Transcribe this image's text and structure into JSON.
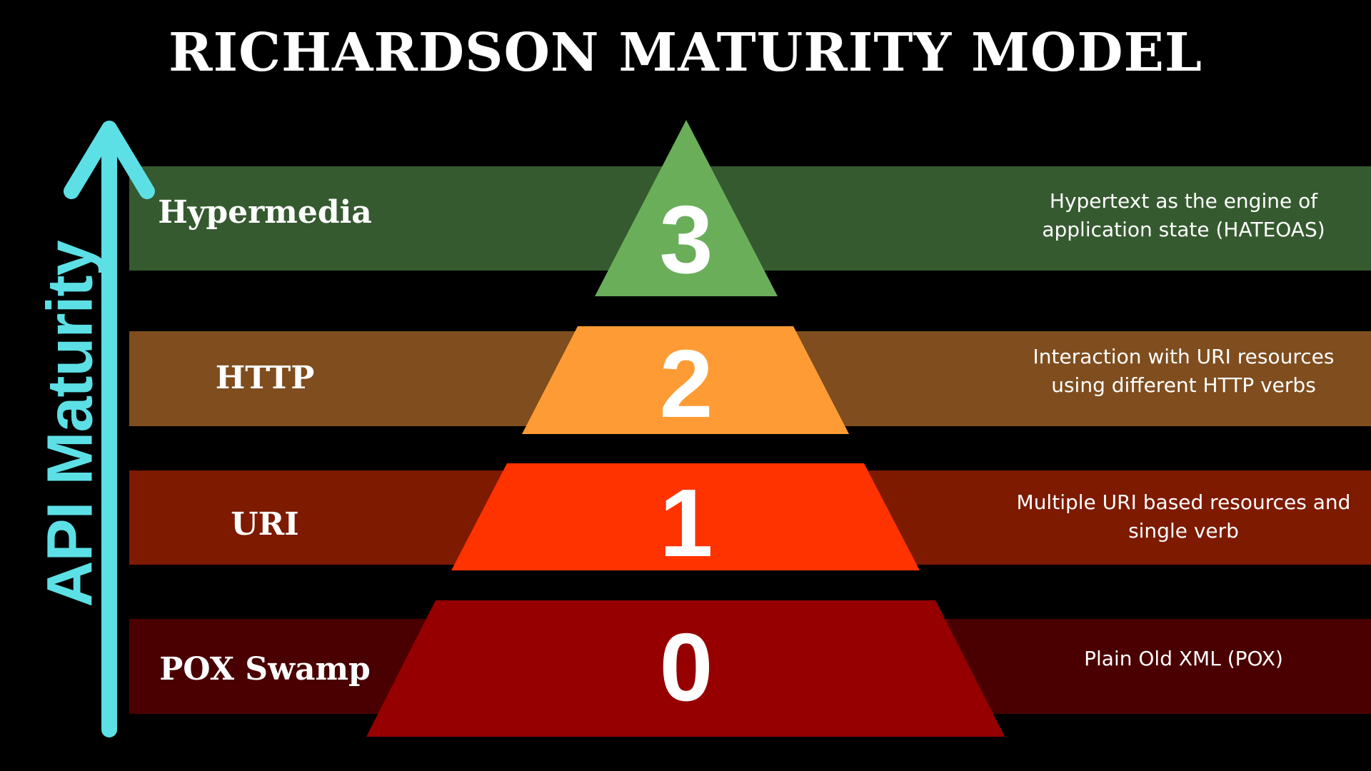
{
  "title": "RICHARDSON MATURITY MODEL",
  "axis_label": "API Maturity",
  "colors": {
    "background": "#000000",
    "arrow": "#5ce0e6",
    "level3_band": "#365a30",
    "level3_tri": "#6aae5a",
    "level2_band": "#7f4d1e",
    "level2_tri": "#ff9b34",
    "level1_band": "#7d1a00",
    "level1_tri": "#ff3300",
    "level0_band": "#4a0000",
    "level0_tri": "#960000"
  },
  "levels": [
    {
      "number": "3",
      "name": "Hypermedia",
      "description": "Hypertext as the engine of application state (HATEOAS)"
    },
    {
      "number": "2",
      "name": "HTTP",
      "description": "Interaction with URI resources using different HTTP verbs"
    },
    {
      "number": "1",
      "name": "URI",
      "description": "Multiple URI based resources and single verb"
    },
    {
      "number": "0",
      "name": "POX Swamp",
      "description": "Plain Old XML (POX)"
    }
  ]
}
